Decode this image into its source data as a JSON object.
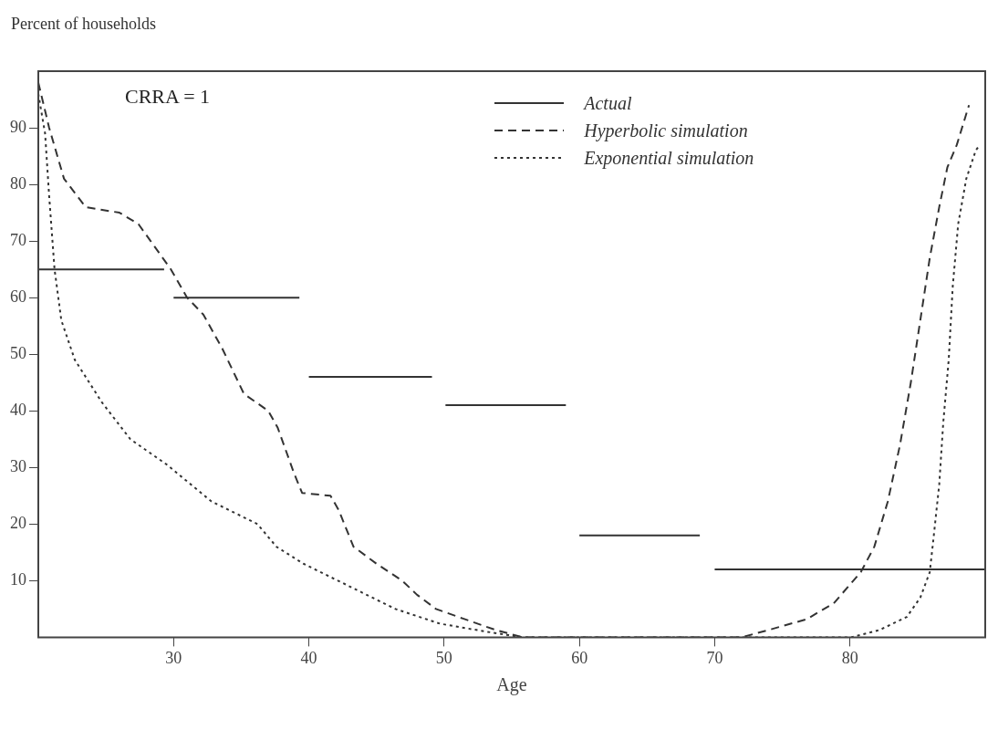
{
  "chart_data": {
    "type": "line",
    "ylabel": "Percent of households",
    "xlabel": "Age",
    "annotations": [
      "CRRA = 1"
    ],
    "xlim": [
      20,
      90
    ],
    "xticks": [
      30,
      40,
      50,
      60,
      70,
      80
    ],
    "ylim": [
      0,
      100
    ],
    "yticks": [
      10,
      20,
      30,
      40,
      50,
      60,
      70,
      80,
      90
    ],
    "grid": false,
    "legend": "top right",
    "marker": "none",
    "series": [
      {
        "name": "Actual",
        "color": "#333333",
        "line_style": "solid",
        "x": [
          20,
          29.3,
          29.6,
          30,
          39.3,
          39.6,
          40,
          49.1,
          49.5,
          50.1,
          59,
          59.5,
          60,
          68.9,
          69.4,
          70,
          90
        ],
        "values": [
          65,
          65,
          null,
          60,
          60,
          null,
          46,
          46,
          null,
          41,
          41,
          null,
          18,
          18,
          null,
          12,
          12
        ]
      },
      {
        "name": "Hyperbolic simulation",
        "color": "#333333",
        "line_style": "dashed",
        "x": [
          20,
          20.8,
          21.9,
          23.5,
          26,
          27.4,
          28.3,
          29.8,
          31,
          32.2,
          33.6,
          35.2,
          37,
          37.7,
          38.9,
          39.5,
          41.6,
          42.2,
          43.3,
          45,
          46.9,
          48,
          49.4,
          51.4,
          53.8,
          55.8,
          63.2,
          72,
          74,
          76.8,
          78.8,
          80.8,
          81.8,
          82.8,
          83.7,
          84.5,
          85.2,
          85.9,
          86.6,
          87.2,
          87.9,
          88.8
        ],
        "values": [
          98,
          90,
          81,
          76,
          75,
          73,
          70,
          65,
          60,
          57,
          51,
          43,
          40,
          37,
          29,
          25.5,
          25,
          22.5,
          16,
          13,
          10,
          7.5,
          5,
          3.3,
          1.3,
          0,
          0,
          0,
          1.3,
          3.2,
          6,
          11.5,
          16,
          24,
          34,
          45,
          56,
          67,
          76,
          83,
          87,
          94
        ]
      },
      {
        "name": "Exponential simulation",
        "color": "#333333",
        "line_style": "dotted",
        "x": [
          20,
          20.5,
          20.8,
          21.2,
          21.7,
          22.7,
          24.7,
          26.8,
          29.5,
          32.8,
          36.2,
          37.6,
          39.6,
          43,
          46.4,
          49.7,
          53.1,
          55.8,
          76.8,
          80.1,
          82.2,
          84.2,
          85.2,
          85.9,
          86.2,
          86.6,
          86.9,
          87.3,
          87.6,
          88,
          88.6,
          89.3,
          89.6
        ],
        "values": [
          96,
          89,
          78,
          65,
          56,
          49,
          41.5,
          35,
          30.5,
          24,
          20,
          16,
          13,
          9,
          5,
          2.4,
          1,
          0,
          0,
          0,
          1.3,
          3.6,
          7,
          11.5,
          18,
          27,
          38,
          49,
          62,
          73,
          81,
          86,
          87
        ]
      }
    ]
  }
}
